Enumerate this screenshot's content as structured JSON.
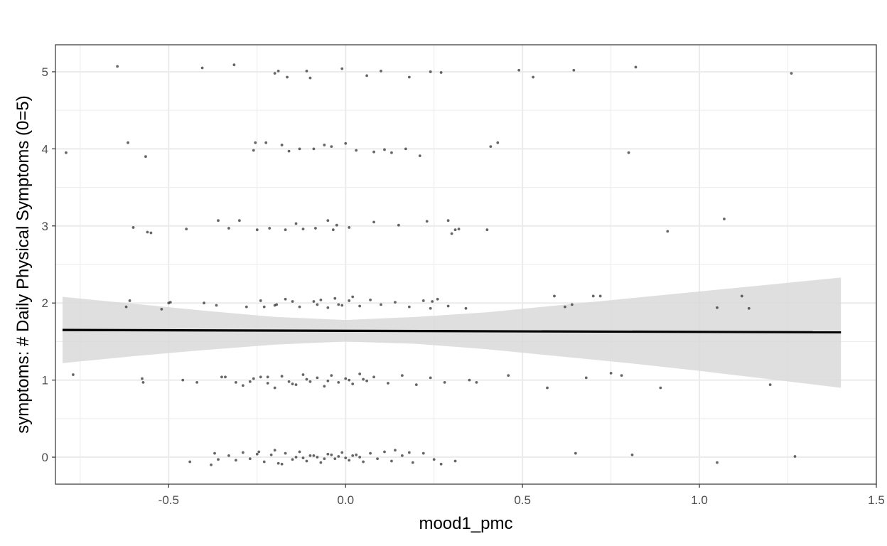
{
  "chart_data": {
    "type": "scatter",
    "title": "",
    "xlabel": "mood1_pmc",
    "ylabel": "symptoms: # Daily Physical Symptoms (0=5)",
    "xlim": [
      -0.82,
      1.5
    ],
    "ylim": [
      -0.35,
      5.35
    ],
    "x_ticks": [
      -0.5,
      0.0,
      0.5,
      1.0,
      1.5
    ],
    "x_tick_labels": [
      "-0.5",
      "0.0",
      "0.5",
      "1.0",
      "1.5"
    ],
    "y_ticks": [
      0,
      1,
      2,
      3,
      4,
      5
    ],
    "y_tick_labels": [
      "0",
      "1",
      "2",
      "3",
      "4",
      "5"
    ],
    "grid": true,
    "theme": "bw",
    "colors": {
      "points": "#333333",
      "line": "#000000",
      "ribbon": "#d9d9d9",
      "grid": "#ebebeb",
      "border": "#333333"
    },
    "series": [
      {
        "type": "scatter",
        "jitter": true,
        "points": [
          [
            -0.79,
            3.95
          ],
          [
            -0.77,
            1.07
          ],
          [
            -0.645,
            5.07
          ],
          [
            -0.62,
            1.95
          ],
          [
            -0.615,
            4.08
          ],
          [
            -0.61,
            2.03
          ],
          [
            -0.6,
            2.98
          ],
          [
            -0.575,
            1.02
          ],
          [
            -0.572,
            0.97
          ],
          [
            -0.565,
            3.9
          ],
          [
            -0.56,
            2.92
          ],
          [
            -0.55,
            2.91
          ],
          [
            -0.52,
            1.92
          ],
          [
            -0.5,
            2.0
          ],
          [
            -0.495,
            2.01
          ],
          [
            -0.46,
            1.0
          ],
          [
            -0.45,
            2.96
          ],
          [
            -0.44,
            -0.06
          ],
          [
            -0.42,
            0.97
          ],
          [
            -0.405,
            5.05
          ],
          [
            -0.4,
            2.0
          ],
          [
            -0.38,
            -0.1
          ],
          [
            -0.37,
            0.05
          ],
          [
            -0.365,
            1.97
          ],
          [
            -0.36,
            3.07
          ],
          [
            -0.35,
            1.04
          ],
          [
            -0.34,
            1.04
          ],
          [
            -0.33,
            2.97
          ],
          [
            -0.315,
            5.09
          ],
          [
            -0.31,
            0.97
          ],
          [
            -0.3,
            3.07
          ],
          [
            -0.29,
            0.93
          ],
          [
            -0.27,
            0.98
          ],
          [
            -0.26,
            3.98
          ],
          [
            -0.255,
            4.08
          ],
          [
            -0.25,
            2.95
          ],
          [
            -0.245,
            0.07
          ],
          [
            -0.24,
            1.04
          ],
          [
            -0.23,
            1.95
          ],
          [
            -0.225,
            4.08
          ],
          [
            -0.22,
            1.04
          ],
          [
            -0.215,
            2.97
          ],
          [
            -0.2,
            4.98
          ],
          [
            -0.2,
            0.9
          ],
          [
            -0.195,
            1.98
          ],
          [
            -0.19,
            5.01
          ],
          [
            -0.18,
            4.05
          ],
          [
            -0.17,
            2.95
          ],
          [
            -0.165,
            4.93
          ],
          [
            -0.16,
            3.97
          ],
          [
            -0.15,
            0.95
          ],
          [
            -0.15,
            2.02
          ],
          [
            -0.14,
            3.03
          ],
          [
            -0.13,
            4.0
          ],
          [
            -0.12,
            2.96
          ],
          [
            -0.11,
            5.01
          ],
          [
            -0.1,
            4.92
          ],
          [
            -0.09,
            4.0
          ],
          [
            -0.085,
            2.97
          ],
          [
            -0.08,
            1.98
          ],
          [
            -0.06,
            4.05
          ],
          [
            -0.05,
            3.07
          ],
          [
            -0.04,
            4.03
          ],
          [
            -0.035,
            2.95
          ],
          [
            -0.025,
            3.01
          ],
          [
            -0.02,
            1.98
          ],
          [
            -0.01,
            5.04
          ],
          [
            0.0,
            4.07
          ],
          [
            0.01,
            2.98
          ],
          [
            0.02,
            2.08
          ],
          [
            0.03,
            3.98
          ],
          [
            0.06,
            4.95
          ],
          [
            0.08,
            3.96
          ],
          [
            0.08,
            3.05
          ],
          [
            0.1,
            5.01
          ],
          [
            0.11,
            3.99
          ],
          [
            0.13,
            3.95
          ],
          [
            0.15,
            3.01
          ],
          [
            0.17,
            4.0
          ],
          [
            0.18,
            4.93
          ],
          [
            0.21,
            3.91
          ],
          [
            0.22,
            2.03
          ],
          [
            0.23,
            3.06
          ],
          [
            0.24,
            5.0
          ],
          [
            0.245,
            2.02
          ],
          [
            0.27,
            4.99
          ],
          [
            0.29,
            3.07
          ],
          [
            0.3,
            2.9
          ],
          [
            0.31,
            2.95
          ],
          [
            0.32,
            2.96
          ],
          [
            0.34,
            1.93
          ],
          [
            0.35,
            1.0
          ],
          [
            0.37,
            0.97
          ],
          [
            0.4,
            2.95
          ],
          [
            0.41,
            4.03
          ],
          [
            0.43,
            4.08
          ],
          [
            0.46,
            1.06
          ],
          [
            0.49,
            5.02
          ],
          [
            0.53,
            4.93
          ],
          [
            0.57,
            0.9
          ],
          [
            0.59,
            2.09
          ],
          [
            0.62,
            1.95
          ],
          [
            0.64,
            1.98
          ],
          [
            0.645,
            5.02
          ],
          [
            0.65,
            0.05
          ],
          [
            0.68,
            1.03
          ],
          [
            0.7,
            2.09
          ],
          [
            0.72,
            2.09
          ],
          [
            0.75,
            1.09
          ],
          [
            0.78,
            1.06
          ],
          [
            0.8,
            3.95
          ],
          [
            0.81,
            0.03
          ],
          [
            0.82,
            5.06
          ],
          [
            0.89,
            0.9
          ],
          [
            0.91,
            2.93
          ],
          [
            1.05,
            1.94
          ],
          [
            1.05,
            -0.07
          ],
          [
            1.07,
            3.09
          ],
          [
            1.12,
            2.09
          ],
          [
            1.14,
            1.93
          ],
          [
            1.2,
            0.94
          ],
          [
            1.26,
            4.98
          ],
          [
            1.27,
            0.01
          ],
          [
            -0.36,
            -0.03
          ],
          [
            -0.33,
            0.02
          ],
          [
            -0.31,
            -0.04
          ],
          [
            -0.29,
            0.06
          ],
          [
            -0.27,
            -0.02
          ],
          [
            -0.25,
            0.04
          ],
          [
            -0.23,
            -0.06
          ],
          [
            -0.21,
            0.03
          ],
          [
            -0.19,
            -0.08
          ],
          [
            -0.17,
            0.05
          ],
          [
            -0.15,
            -0.03
          ],
          [
            -0.13,
            0.07
          ],
          [
            -0.11,
            -0.05
          ],
          [
            -0.09,
            0.02
          ],
          [
            -0.07,
            -0.07
          ],
          [
            -0.05,
            0.04
          ],
          [
            -0.03,
            -0.02
          ],
          [
            -0.01,
            0.06
          ],
          [
            0.01,
            -0.04
          ],
          [
            0.03,
            0.03
          ],
          [
            0.05,
            -0.06
          ],
          [
            0.07,
            0.05
          ],
          [
            0.09,
            -0.02
          ],
          [
            0.11,
            0.07
          ],
          [
            0.13,
            -0.05
          ],
          [
            0.16,
            0.02
          ],
          [
            0.19,
            -0.07
          ],
          [
            0.22,
            0.05
          ],
          [
            0.25,
            -0.03
          ],
          [
            0.27,
            -0.09
          ],
          [
            -0.14,
            0.0
          ],
          [
            -0.12,
            -0.01
          ],
          [
            -0.1,
            0.02
          ],
          [
            -0.08,
            0.0
          ],
          [
            -0.06,
            -0.02
          ],
          [
            -0.04,
            0.03
          ],
          [
            -0.02,
            0.01
          ],
          [
            0.0,
            -0.01
          ],
          [
            0.02,
            0.02
          ],
          [
            0.04,
            0.0
          ],
          [
            -0.2,
            0.09
          ],
          [
            -0.18,
            -0.09
          ],
          [
            0.14,
            0.09
          ],
          [
            0.18,
            0.06
          ],
          [
            0.31,
            -0.05
          ],
          [
            -0.26,
            1.02
          ],
          [
            -0.22,
            0.96
          ],
          [
            -0.18,
            1.05
          ],
          [
            -0.14,
            0.94
          ],
          [
            -0.12,
            1.07
          ],
          [
            -0.1,
            0.98
          ],
          [
            -0.08,
            1.03
          ],
          [
            -0.06,
            0.92
          ],
          [
            -0.04,
            1.06
          ],
          [
            -0.02,
            0.97
          ],
          [
            0.0,
            1.02
          ],
          [
            0.02,
            0.95
          ],
          [
            0.04,
            1.08
          ],
          [
            0.06,
            0.99
          ],
          [
            0.08,
            1.04
          ],
          [
            0.12,
            0.96
          ],
          [
            0.16,
            1.06
          ],
          [
            0.2,
            0.94
          ],
          [
            0.24,
            1.03
          ],
          [
            0.28,
            0.97
          ],
          [
            -0.16,
            0.98
          ],
          [
            -0.11,
            1.01
          ],
          [
            -0.05,
            0.99
          ],
          [
            0.01,
            1.0
          ],
          [
            0.05,
            1.01
          ],
          [
            -0.28,
            1.95
          ],
          [
            -0.24,
            2.03
          ],
          [
            -0.2,
            1.97
          ],
          [
            -0.17,
            2.05
          ],
          [
            -0.13,
            1.95
          ],
          [
            -0.09,
            2.02
          ],
          [
            -0.07,
            2.04
          ],
          [
            -0.05,
            1.94
          ],
          [
            -0.03,
            2.06
          ],
          [
            -0.01,
            1.97
          ],
          [
            0.01,
            2.03
          ],
          [
            0.04,
            1.96
          ],
          [
            0.07,
            2.04
          ],
          [
            0.1,
            1.98
          ],
          [
            0.14,
            2.01
          ],
          [
            0.18,
            1.95
          ],
          [
            0.26,
            2.05
          ],
          [
            0.29,
            1.96
          ],
          [
            0.24,
            1.93
          ]
        ]
      },
      {
        "type": "line",
        "x": [
          -0.8,
          1.4
        ],
        "y": [
          1.65,
          1.62
        ]
      },
      {
        "type": "ribbon",
        "x": [
          -0.8,
          -0.6,
          -0.4,
          -0.2,
          0.0,
          0.2,
          0.4,
          0.6,
          0.8,
          1.0,
          1.2,
          1.4
        ],
        "lower": [
          1.22,
          1.31,
          1.39,
          1.46,
          1.5,
          1.47,
          1.4,
          1.31,
          1.22,
          1.12,
          1.01,
          0.9
        ],
        "upper": [
          2.08,
          1.99,
          1.9,
          1.82,
          1.78,
          1.82,
          1.88,
          1.97,
          2.06,
          2.15,
          2.24,
          2.33
        ]
      }
    ]
  }
}
